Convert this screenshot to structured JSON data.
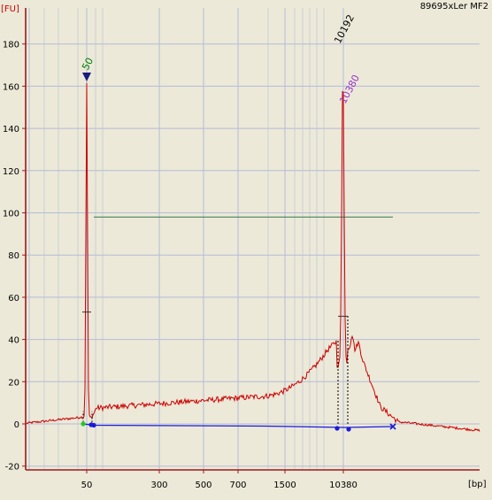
{
  "chart_data": {
    "type": "line",
    "title": "89695xLer MF2",
    "ylabel": "[FU]",
    "xlabel": "[bp]",
    "ylim": [
      -25,
      195
    ],
    "y_ticks": [
      -20,
      0,
      20,
      40,
      60,
      80,
      100,
      120,
      140,
      160,
      180
    ],
    "x_ticks": [
      "50",
      "300",
      "500",
      "700",
      "1500",
      "10380"
    ],
    "grid": true,
    "colors": {
      "trace": "#cc0000",
      "baseline": "#1a1adb",
      "region": "#2e7a4a",
      "plot_bg": "#ece9d8",
      "grid": "#b4bcd8",
      "axis": "#a01818",
      "ladder_marker": "#1a1a80",
      "ladder_label": "#008000",
      "peak_label": "#000000",
      "peak_label_2": "#9933cc"
    },
    "annotations": [
      {
        "text": "50",
        "peak": "lower_marker",
        "color": "ladder_label"
      },
      {
        "text": "10192",
        "peak": "main_peak",
        "color": "peak_label"
      },
      {
        "text": "10380",
        "peak": "main_peak",
        "color": "peak_label_2"
      }
    ]
  }
}
